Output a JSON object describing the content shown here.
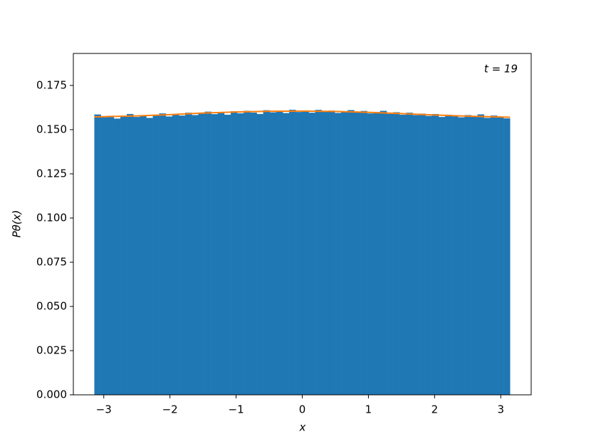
{
  "chart_data": {
    "type": "histogram",
    "annotation": "t = 19",
    "xlabel": "x",
    "ylabel": "Pθ(x)",
    "bins": [
      -3.1416,
      -3.0434,
      -2.9452,
      -2.8471,
      -2.7489,
      -2.6507,
      -2.5525,
      -2.4544,
      -2.3562,
      -2.258,
      -2.1598,
      -2.0617,
      -1.9635,
      -1.8653,
      -1.7671,
      -1.669,
      -1.5708,
      -1.4726,
      -1.3744,
      -1.2763,
      -1.1781,
      -1.0799,
      -0.9817,
      -0.8836,
      -0.7854,
      -0.6872,
      -0.589,
      -0.4909,
      -0.3927,
      -0.2945,
      -0.1963,
      -0.0982,
      0,
      0.0982,
      0.1963,
      0.2945,
      0.3927,
      0.4909,
      0.589,
      0.6872,
      0.7854,
      0.8836,
      0.9817,
      1.0799,
      1.1781,
      1.2763,
      1.3744,
      1.4726,
      1.5708,
      1.669,
      1.7671,
      1.8653,
      1.9635,
      2.0617,
      2.1598,
      2.258,
      2.3562,
      2.4544,
      2.5525,
      2.6507,
      2.7489,
      2.8471,
      2.9452,
      3.0434,
      3.1416
    ],
    "values": [
      0.1585,
      0.1569,
      0.1578,
      0.1562,
      0.1574,
      0.1588,
      0.1571,
      0.158,
      0.1566,
      0.1583,
      0.1591,
      0.1574,
      0.1586,
      0.1579,
      0.1595,
      0.1582,
      0.159,
      0.1601,
      0.1587,
      0.1598,
      0.1584,
      0.1603,
      0.1592,
      0.1606,
      0.1596,
      0.1588,
      0.1609,
      0.1597,
      0.1604,
      0.1593,
      0.1612,
      0.1599,
      0.1608,
      0.1595,
      0.1611,
      0.1601,
      0.1607,
      0.1594,
      0.1603,
      0.161,
      0.1597,
      0.1605,
      0.1591,
      0.16,
      0.1606,
      0.1589,
      0.1598,
      0.1584,
      0.1595,
      0.1582,
      0.159,
      0.1577,
      0.1588,
      0.1571,
      0.1584,
      0.1575,
      0.1569,
      0.1582,
      0.1573,
      0.1586,
      0.1566,
      0.1579,
      0.1574,
      0.1563
    ],
    "color": "#1f77b4",
    "line": {
      "x": [
        -3.1416,
        -2.5,
        -2,
        -1.5,
        -1,
        -0.5,
        0,
        0.5,
        1,
        1.5,
        2,
        2.5,
        3.1416
      ],
      "values": [
        0.1572,
        0.1578,
        0.1585,
        0.1594,
        0.16,
        0.1604,
        0.1605,
        0.1603,
        0.1598,
        0.1591,
        0.1583,
        0.1576,
        0.157
      ],
      "color": "#ff7f0e"
    },
    "xlim": [
      -3.46,
      3.46
    ],
    "ylim": [
      0,
      0.1931
    ],
    "xticks": [
      {
        "value": -3,
        "label": "−3"
      },
      {
        "value": -2,
        "label": "−2"
      },
      {
        "value": -1,
        "label": "−1"
      },
      0,
      1,
      2,
      3
    ],
    "yticks": [
      {
        "value": 0,
        "label": "0.000"
      },
      {
        "value": 0.025,
        "label": "0.025"
      },
      {
        "value": 0.05,
        "label": "0.050"
      },
      0.075,
      {
        "value": 0.1,
        "label": "0.100"
      },
      0.125,
      {
        "value": 0.15,
        "label": "0.150"
      },
      0.175
    ]
  }
}
